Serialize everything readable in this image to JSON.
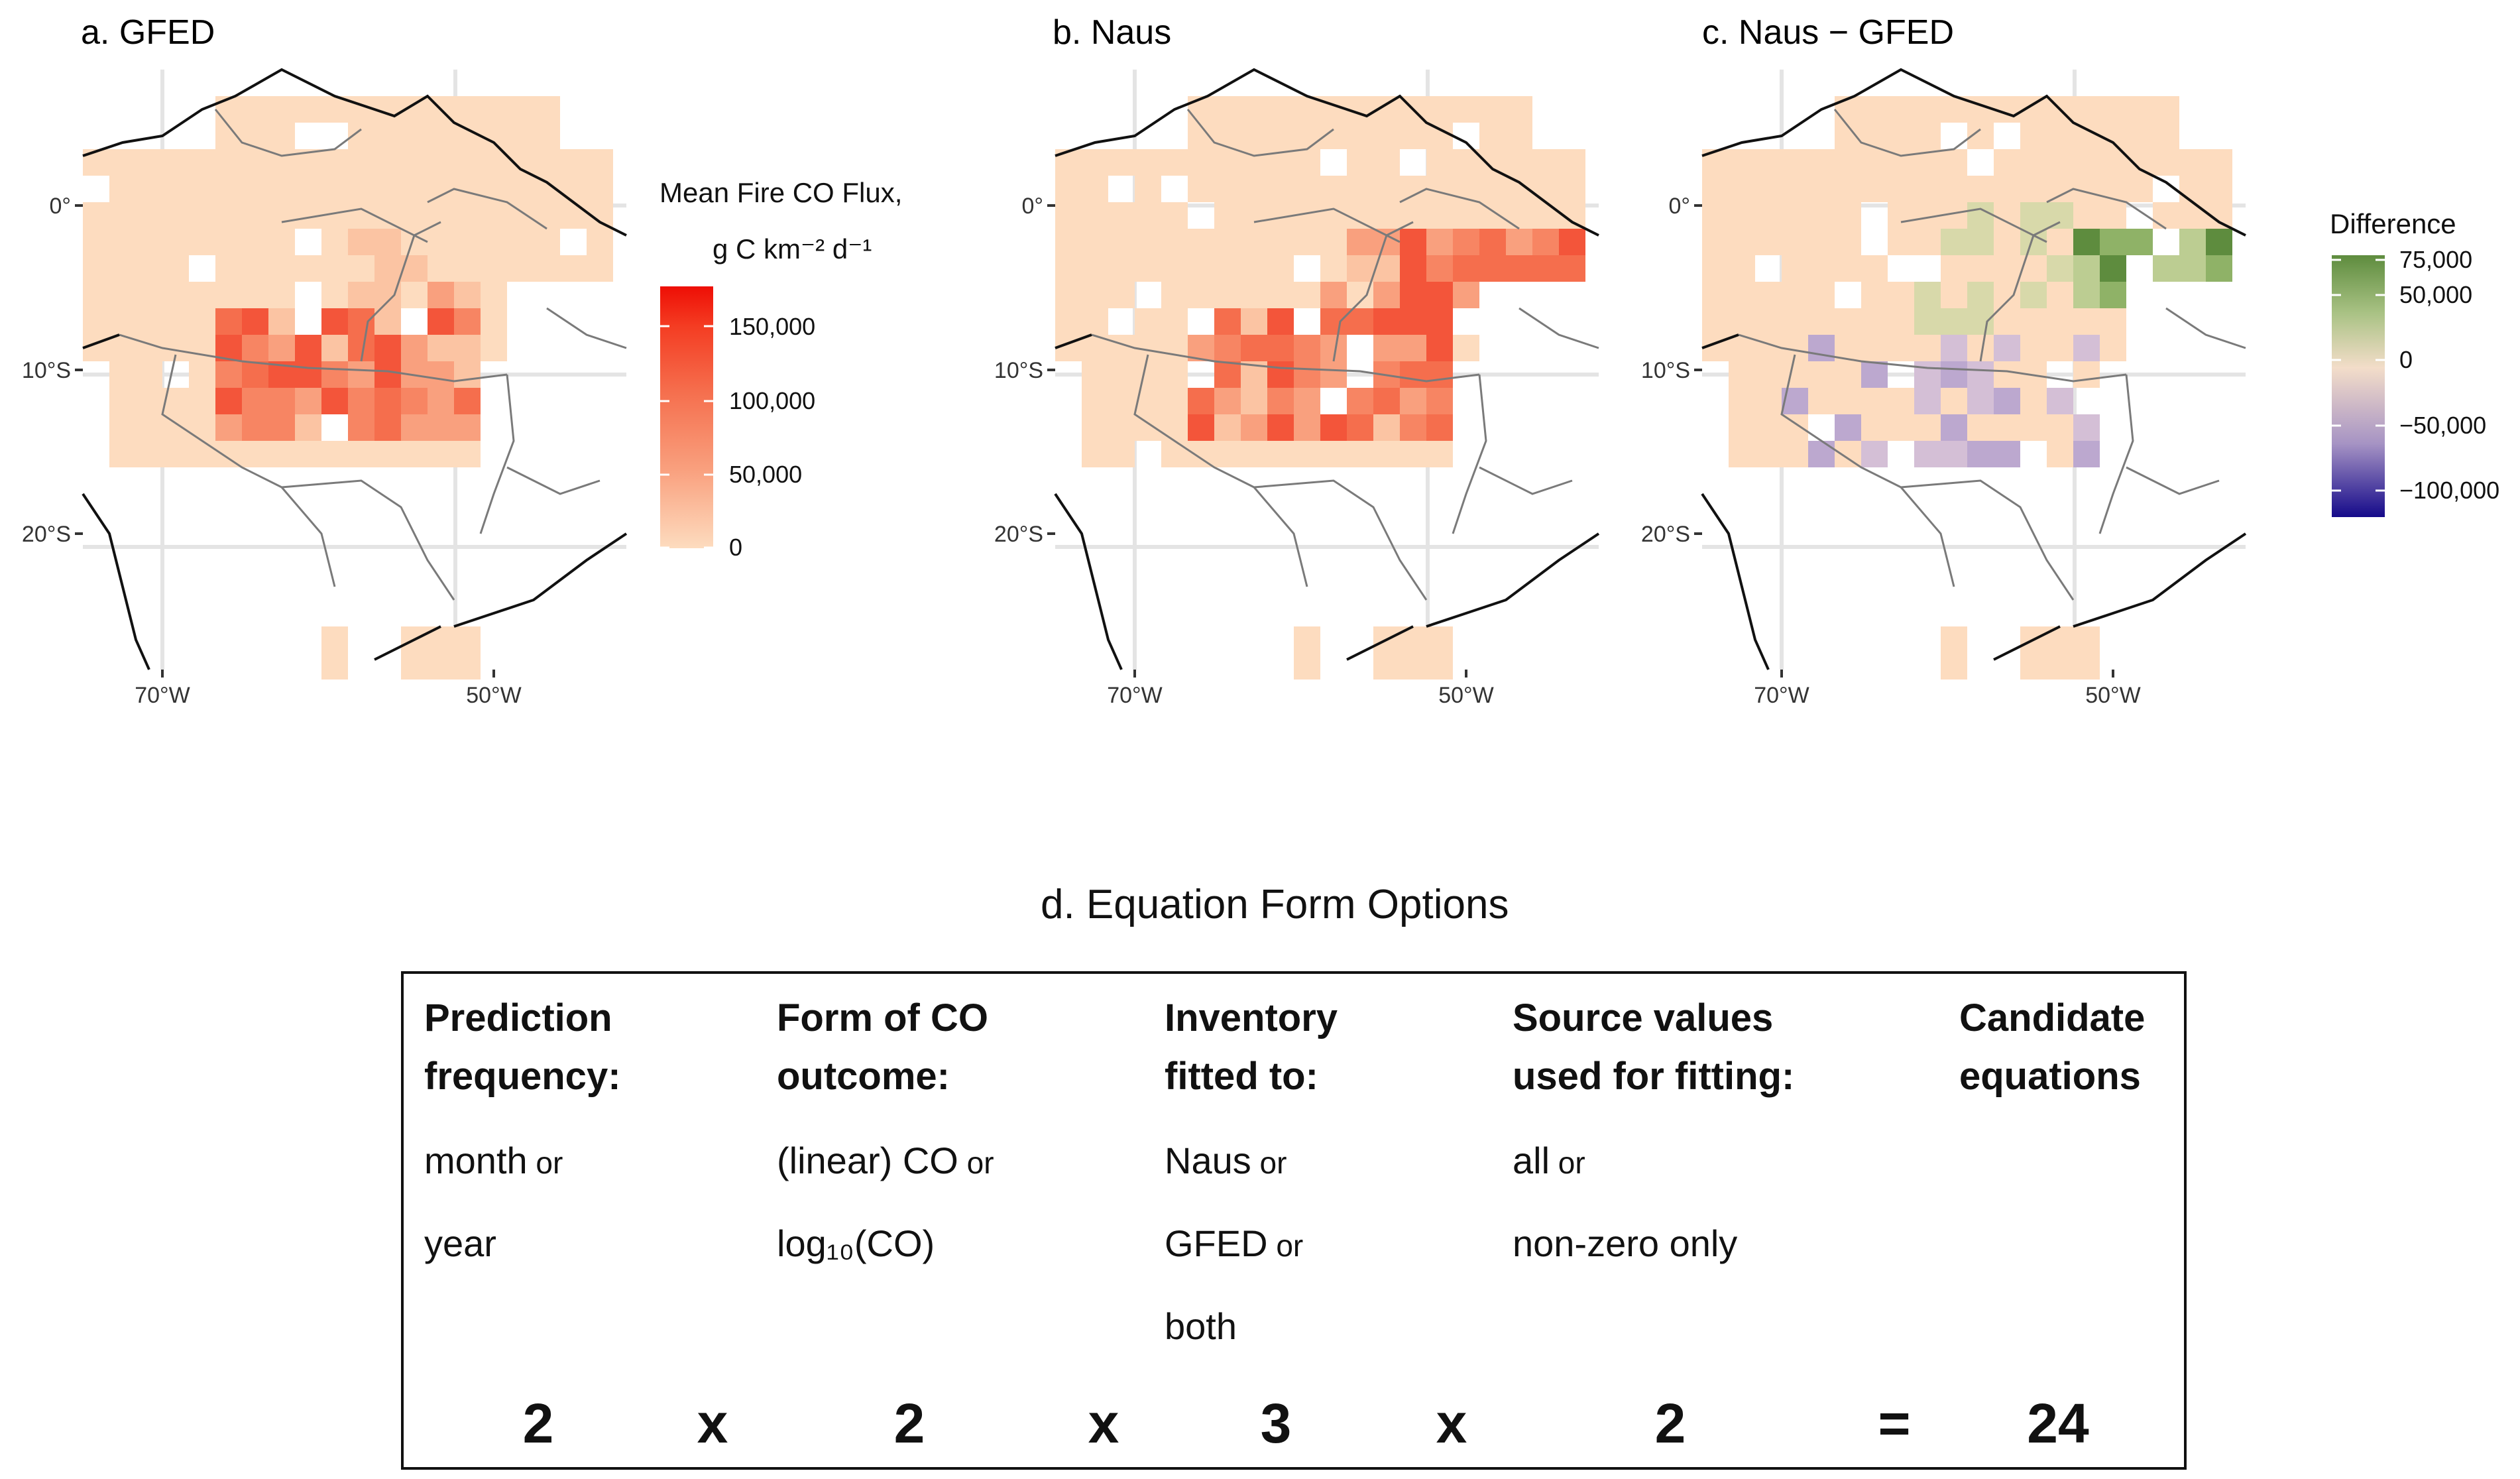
{
  "figure": {
    "panels": [
      {
        "id": "a",
        "label": "a.  GFED",
        "colors": "fire"
      },
      {
        "id": "b",
        "label": "b.  Naus",
        "colors": "fire"
      },
      {
        "id": "c",
        "label": "c.  Naus − GFED",
        "colors": "diff"
      }
    ],
    "axis": {
      "y_ticks": [
        "0°",
        "10°S",
        "20°S"
      ],
      "x_ticks": [
        "70°W",
        "50°W"
      ]
    },
    "legend_flux": {
      "title_line1": "Mean Fire CO Flux,",
      "title_line2": "g C km⁻² d⁻¹",
      "ticks": [
        "150,000",
        "100,000",
        "50,000",
        "0"
      ],
      "gradient": [
        "#fddcbf",
        "#f9a07e",
        "#f56e4d",
        "#f43c22",
        "#ee0e05"
      ]
    },
    "legend_diff": {
      "title": "Difference",
      "ticks": [
        "75,000",
        "50,000",
        "0",
        "−50,000",
        "−100,000"
      ],
      "gradient": [
        "#5e8c3e",
        "#a9c284",
        "#f3ddc9",
        "#a693c4",
        "#150a8a"
      ]
    },
    "colors": {
      "land": "#fddcbf",
      "grid": "#e4e4e4",
      "border": "#111111",
      "internal": "#7a7a7a"
    }
  },
  "table": {
    "title": "d.  Equation Form Options",
    "columns": [
      {
        "head1": "Prediction",
        "head2": "frequency:",
        "opts": [
          {
            "t": "month",
            "or": " or"
          },
          {
            "t": "year",
            "or": ""
          }
        ]
      },
      {
        "head1": "Form of CO",
        "head2": "outcome:",
        "opts": [
          {
            "t": "(linear) CO",
            "or": " or"
          },
          {
            "t": "log₁₀(CO)",
            "or": ""
          }
        ]
      },
      {
        "head1": "Inventory",
        "head2": "fitted to:",
        "opts": [
          {
            "t": "Naus",
            "or": " or"
          },
          {
            "t": "GFED",
            "or": " or"
          },
          {
            "t": "both",
            "or": ""
          }
        ]
      },
      {
        "head1": "Source values",
        "head2": "used for fitting:",
        "opts": [
          {
            "t": "all",
            "or": " or"
          },
          {
            "t": "non-zero only",
            "or": ""
          }
        ]
      },
      {
        "head1": "Candidate",
        "head2": "equations",
        "opts": []
      }
    ],
    "numbers": [
      "2",
      "x",
      "2",
      "x",
      "3",
      "x",
      "2",
      "=",
      "24"
    ]
  }
}
